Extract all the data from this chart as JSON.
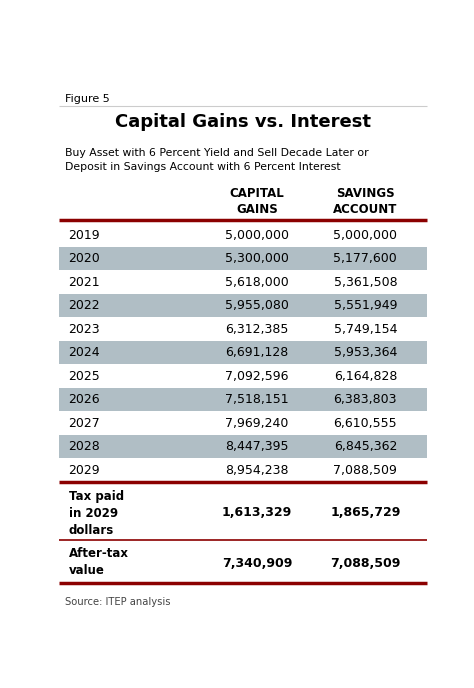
{
  "figure_label": "Figure 5",
  "title": "Capital Gains vs. Interest",
  "subtitle": "Buy Asset with 6 Percent Yield and Sell Decade Later or\nDeposit in Savings Account with 6 Percent Interest",
  "col_headers": [
    "CAPITAL\nGAINS",
    "SAVINGS\nACCOUNT"
  ],
  "years": [
    "2019",
    "2020",
    "2021",
    "2022",
    "2023",
    "2024",
    "2025",
    "2026",
    "2027",
    "2028",
    "2029"
  ],
  "capital_gains": [
    "5,000,000",
    "5,300,000",
    "5,618,000",
    "5,955,080",
    "6,312,385",
    "6,691,128",
    "7,092,596",
    "7,518,151",
    "7,969,240",
    "8,447,395",
    "8,954,238"
  ],
  "savings_account": [
    "5,000,000",
    "5,177,600",
    "5,361,508",
    "5,551,949",
    "5,749,154",
    "5,953,364",
    "6,164,828",
    "6,383,803",
    "6,610,555",
    "6,845,362",
    "7,088,509"
  ],
  "shaded_rows": [
    1,
    3,
    5,
    7,
    9
  ],
  "tax_label": "Tax paid\nin 2029\ndollars",
  "tax_capital": "1,613,329",
  "tax_savings": "1,865,729",
  "aftertax_label": "After-tax\nvalue",
  "aftertax_capital": "7,340,909",
  "aftertax_savings": "7,088,509",
  "source": "Source: ITEP analysis",
  "bg_color": "#ffffff",
  "shade_color": "#b0bec5",
  "dark_red": "#8b0000",
  "figure_line_color": "#cccccc",
  "text_color": "#000000",
  "source_color": "#444444"
}
